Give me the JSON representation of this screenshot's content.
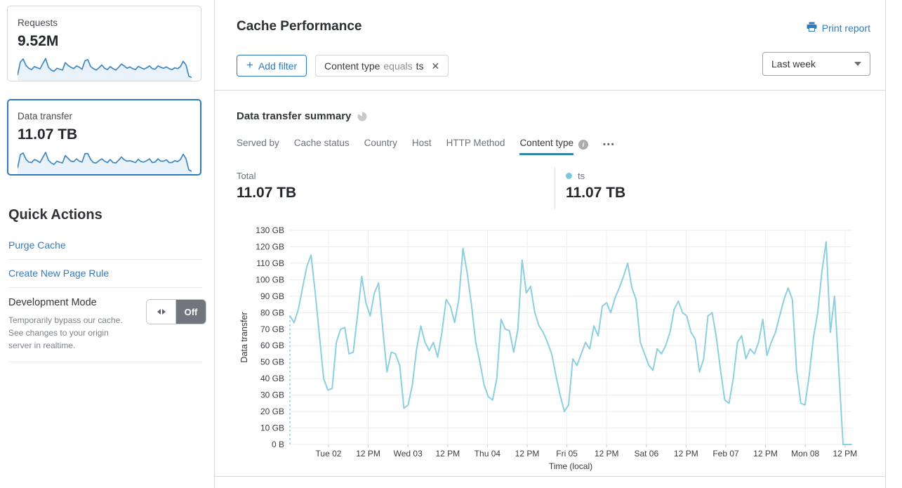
{
  "sidebar": {
    "cards": [
      {
        "label": "Requests",
        "value": "9.52M",
        "selected": false,
        "spark": [
          18,
          75,
          88,
          60,
          48,
          42,
          55,
          50,
          45,
          68,
          90,
          52,
          40,
          35,
          48,
          44,
          40,
          72,
          60,
          52,
          46,
          58,
          52,
          44,
          80,
          85,
          56,
          46,
          40,
          50,
          62,
          48,
          42,
          55,
          46,
          40,
          52,
          66,
          58,
          48,
          54,
          46,
          42,
          56,
          50,
          44,
          50,
          58,
          46,
          44,
          58,
          52,
          48,
          54,
          46,
          42,
          50,
          46,
          55,
          78,
          62,
          14,
          8
        ]
      },
      {
        "label": "Data transfer",
        "value": "11.07 TB",
        "selected": true,
        "spark": [
          20,
          78,
          85,
          58,
          46,
          44,
          57,
          52,
          44,
          66,
          88,
          54,
          42,
          36,
          50,
          45,
          42,
          74,
          62,
          50,
          48,
          60,
          50,
          46,
          82,
          83,
          58,
          44,
          42,
          52,
          60,
          50,
          44,
          57,
          44,
          42,
          54,
          68,
          56,
          50,
          52,
          48,
          44,
          58,
          48,
          46,
          52,
          60,
          44,
          46,
          60,
          50,
          50,
          56,
          44,
          44,
          52,
          48,
          57,
          80,
          60,
          12,
          6
        ]
      }
    ],
    "spark_color": "#3e87c2",
    "spark_fill": "#e9f2f9",
    "quick_actions": {
      "title": "Quick Actions",
      "links": [
        "Purge Cache",
        "Create New Page Rule"
      ],
      "development_mode": {
        "title": "Development Mode",
        "description": "Temporarily bypass our cache. See changes to your origin server in realtime.",
        "toggle_state": "Off"
      }
    }
  },
  "header": {
    "title": "Cache Performance",
    "print_report_label": "Print report",
    "time_range": "Last week"
  },
  "filters": {
    "add_filter_label": "Add filter",
    "chips": [
      {
        "field": "Content type",
        "operator": "equals",
        "value": "ts"
      }
    ]
  },
  "summary": {
    "title": "Data transfer summary",
    "tabs": [
      {
        "label": "Served by",
        "active": false,
        "info": false
      },
      {
        "label": "Cache status",
        "active": false,
        "info": false
      },
      {
        "label": "Country",
        "active": false,
        "info": false
      },
      {
        "label": "Host",
        "active": false,
        "info": false
      },
      {
        "label": "HTTP Method",
        "active": false,
        "info": false
      },
      {
        "label": "Content type",
        "active": true,
        "info": true
      }
    ],
    "more_menu": "•••",
    "total_label": "Total",
    "total_value": "11.07 TB",
    "legend": [
      {
        "name": "ts",
        "value": "11.07 TB",
        "color": "#7bc9dd"
      }
    ]
  },
  "chart_data": {
    "type": "line",
    "title": "Data transfer summary",
    "xlabel": "Time (local)",
    "ylabel": "Data transfer",
    "ylim": [
      0,
      130
    ],
    "unit": "GB",
    "grid": true,
    "yticks": [
      "0 B",
      "10 GB",
      "20 GB",
      "30 GB",
      "40 GB",
      "50 GB",
      "60 GB",
      "70 GB",
      "80 GB",
      "90 GB",
      "100 GB",
      "110 GB",
      "120 GB",
      "130 GB"
    ],
    "xticks": [
      "Tue 02",
      "12 PM",
      "Wed 03",
      "12 PM",
      "Thu 04",
      "12 PM",
      "Fri 05",
      "12 PM",
      "Sat 06",
      "12 PM",
      "Feb 07",
      "12 PM",
      "Mon 08",
      "12 PM"
    ],
    "series": [
      {
        "name": "ts",
        "color": "#8ccfe0",
        "values": [
          78,
          74,
          82,
          95,
          108,
          115,
          92,
          66,
          40,
          33,
          34,
          62,
          70,
          71,
          55,
          56,
          78,
          102,
          86,
          78,
          92,
          98,
          70,
          44,
          56,
          55,
          48,
          22,
          24,
          36,
          58,
          72,
          62,
          57,
          62,
          53,
          68,
          88,
          84,
          74,
          88,
          119,
          104,
          85,
          62,
          50,
          36,
          29,
          27,
          40,
          76,
          70,
          69,
          56,
          70,
          112,
          92,
          96,
          80,
          72,
          68,
          62,
          55,
          42,
          30,
          20,
          24,
          52,
          48,
          55,
          62,
          58,
          72,
          66,
          84,
          86,
          80,
          89,
          95,
          102,
          110,
          95,
          88,
          62,
          55,
          48,
          45,
          58,
          55,
          60,
          68,
          82,
          87,
          80,
          78,
          68,
          64,
          44,
          52,
          78,
          80,
          65,
          45,
          27,
          25,
          40,
          62,
          66,
          52,
          58,
          55,
          62,
          76,
          54,
          62,
          68,
          78,
          88,
          95,
          88,
          45,
          25,
          24,
          42,
          65,
          80,
          105,
          123,
          68,
          90,
          45,
          0,
          0,
          0
        ]
      }
    ],
    "start_of_data_dashed_line": true
  }
}
